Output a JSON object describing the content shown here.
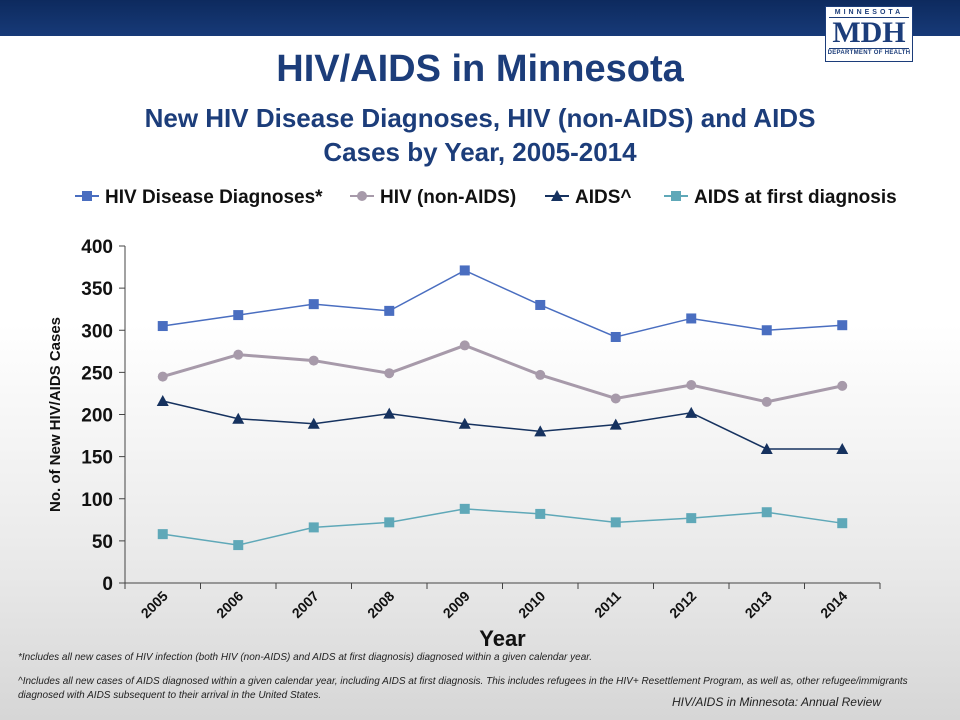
{
  "header": {
    "logo_top": "MINNESOTA",
    "logo_main": "MDH",
    "logo_bottom": "DEPARTMENT OF HEALTH"
  },
  "title": "HIV/AIDS in Minnesota",
  "subtitle_line1": "New HIV Disease Diagnoses, HIV (non-AIDS) and AIDS",
  "subtitle_line2": "Cases by Year, 2005-2014",
  "chart_data": {
    "type": "line",
    "x": [
      "2005",
      "2006",
      "2007",
      "2008",
      "2009",
      "2010",
      "2011",
      "2012",
      "2013",
      "2014"
    ],
    "xlabel": "Year",
    "ylabel": "No. of New HIV/AIDS Cases",
    "ylim": [
      0,
      400
    ],
    "yticks": [
      0,
      50,
      100,
      150,
      200,
      250,
      300,
      350,
      400
    ],
    "grid": false,
    "legend_position": "top",
    "series": [
      {
        "name": "HIV Disease Diagnoses*",
        "color": "#4a6ec0",
        "marker": "square",
        "values": [
          305,
          318,
          331,
          323,
          371,
          330,
          292,
          314,
          300,
          306
        ]
      },
      {
        "name": "HIV (non-AIDS)",
        "color": "#a79aaa",
        "marker": "circle",
        "values": [
          245,
          271,
          264,
          249,
          282,
          247,
          219,
          235,
          215,
          234
        ]
      },
      {
        "name": "AIDS^",
        "color": "#16325f",
        "marker": "triangle",
        "values": [
          216,
          195,
          189,
          201,
          189,
          180,
          188,
          202,
          159,
          159
        ]
      },
      {
        "name": "AIDS at first diagnosis",
        "color": "#5fa8b8",
        "marker": "square",
        "values": [
          58,
          45,
          66,
          72,
          88,
          82,
          72,
          77,
          84,
          71
        ]
      }
    ]
  },
  "footnotes": {
    "note1": "*Includes all new cases of HIV infection (both HIV (non-AIDS) and AIDS at first diagnosis) diagnosed within a given calendar year.",
    "note2": "^Includes all new cases of AIDS diagnosed within a given calendar year, including AIDS at first diagnosis. This includes refugees in the HIV+ Resettlement Program, as well as, other refugee/immigrants diagnosed with AIDS subsequent to their arrival in the United States."
  },
  "source": "HIV/AIDS in Minnesota: Annual Review"
}
